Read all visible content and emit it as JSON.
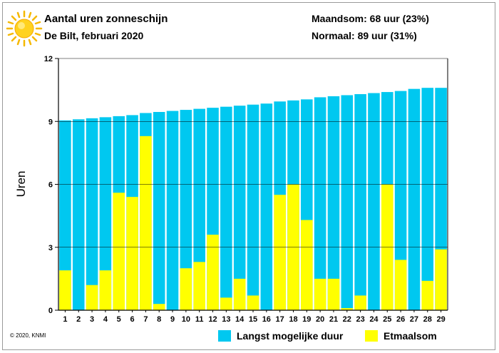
{
  "header": {
    "title": "Aantal uren zonneschijn",
    "subtitle": "De Bilt, februari 2020",
    "month_total": "Maandsom: 68 uur (23%)",
    "normal": "Normaal: 89 uur (31%)"
  },
  "footer": {
    "copyright": "© 2020, KNMI"
  },
  "icons": {
    "sun": "sun-icon"
  },
  "colors": {
    "possible": "#00c8f0",
    "actual": "#ffff00",
    "axis": "#000000"
  },
  "chart_data": {
    "type": "bar",
    "ylabel": "Uren",
    "xlabel": "",
    "ylim": [
      0,
      12
    ],
    "yticks": [
      0,
      3,
      6,
      9,
      12
    ],
    "grid": true,
    "legend_position": "bottom",
    "categories": [
      "1",
      "2",
      "3",
      "4",
      "5",
      "6",
      "7",
      "8",
      "9",
      "10",
      "11",
      "12",
      "13",
      "14",
      "15",
      "16",
      "17",
      "18",
      "19",
      "20",
      "21",
      "22",
      "23",
      "24",
      "25",
      "26",
      "27",
      "28",
      "29"
    ],
    "series": [
      {
        "name": "Langst mogelijke duur",
        "color": "#00c8f0",
        "values": [
          9.05,
          9.1,
          9.15,
          9.2,
          9.25,
          9.3,
          9.4,
          9.45,
          9.5,
          9.55,
          9.6,
          9.65,
          9.7,
          9.75,
          9.8,
          9.85,
          9.95,
          10.0,
          10.05,
          10.15,
          10.2,
          10.25,
          10.3,
          10.35,
          10.4,
          10.45,
          10.55,
          10.6,
          10.6
        ]
      },
      {
        "name": "Etmaalsom",
        "color": "#ffff00",
        "values": [
          1.9,
          0,
          1.2,
          1.9,
          5.6,
          5.4,
          8.3,
          0.3,
          0,
          2.0,
          2.3,
          3.6,
          0.6,
          1.5,
          0.7,
          0,
          5.5,
          6.0,
          4.3,
          1.5,
          1.5,
          0.1,
          0.7,
          0,
          6.0,
          2.4,
          0,
          1.4,
          2.9
        ]
      }
    ]
  }
}
